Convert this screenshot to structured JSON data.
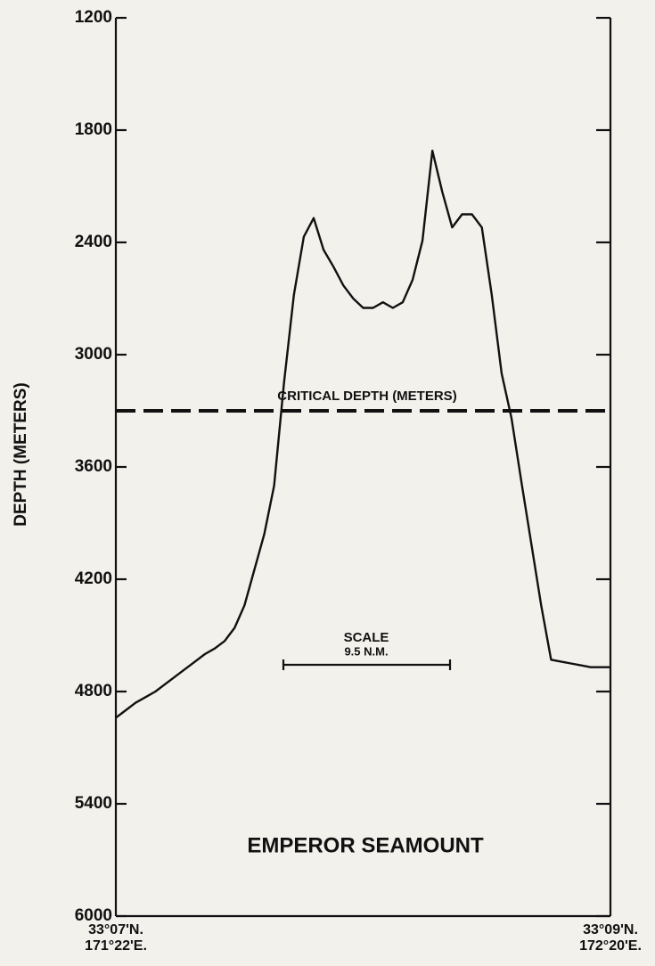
{
  "chart_data": {
    "type": "line",
    "title": "EMPEROR SEAMOUNT",
    "y_label": "DEPTH (METERS)",
    "categories": [
      "33°07'N.\n171°22'E.",
      null,
      null,
      null,
      null,
      null,
      null,
      null,
      null,
      null,
      null,
      null,
      null,
      null,
      null,
      null,
      null,
      null,
      null,
      null,
      null,
      null,
      null,
      null,
      null,
      null,
      null,
      null,
      null,
      null,
      null,
      null,
      null,
      null,
      null,
      null,
      null,
      null,
      null,
      null,
      null,
      null,
      null,
      null,
      null,
      null,
      null,
      null,
      null,
      null,
      "33°09'N.\n172°20'E."
    ],
    "values": [
      4940,
      4900,
      4860,
      4830,
      4800,
      4760,
      4720,
      4680,
      4640,
      4600,
      4570,
      4530,
      4460,
      4340,
      4150,
      3960,
      3700,
      3150,
      2680,
      2370,
      2270,
      2440,
      2530,
      2630,
      2700,
      2750,
      2750,
      2720,
      2750,
      2720,
      2600,
      2390,
      1910,
      2130,
      2320,
      2250,
      2250,
      2320,
      2680,
      3100,
      3340,
      3680,
      4010,
      4340,
      4630,
      4640,
      4650,
      4660,
      4670,
      4670,
      4670
    ],
    "color": "#111111",
    "ylim": [
      1200,
      6000
    ],
    "y_inverted": true,
    "yticks": [
      1200,
      1800,
      2400,
      3000,
      3600,
      4200,
      4800,
      5400,
      6000
    ],
    "reference_lines": [
      {
        "value": 3300,
        "label": "CRITICAL DEPTH (METERS)"
      }
    ],
    "scale": {
      "title": "SCALE",
      "label": "9.5 N.M."
    }
  }
}
